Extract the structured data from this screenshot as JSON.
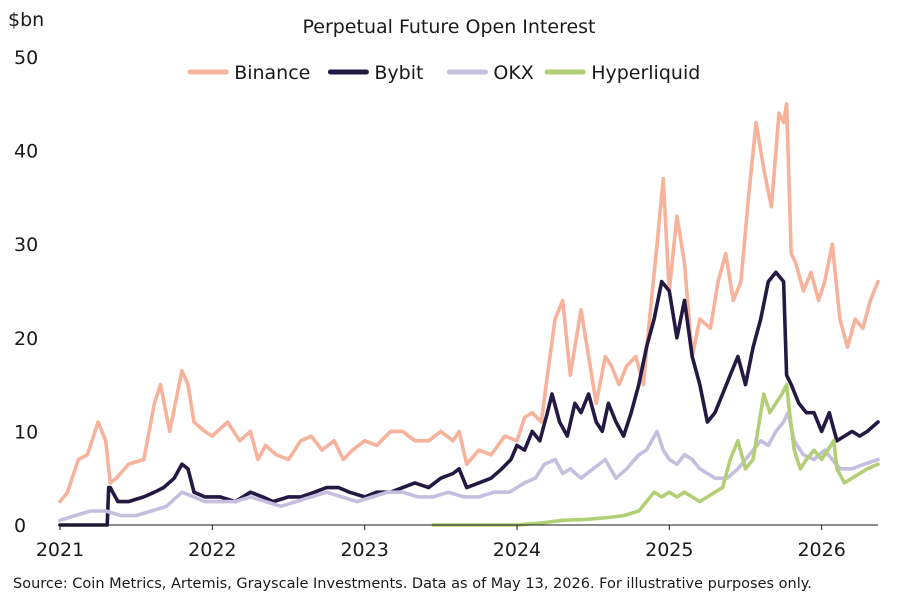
{
  "chart_data": {
    "type": "line",
    "title": "Perpetual Future Open Interest",
    "ylabel": "$bn",
    "ylim": [
      0,
      50
    ],
    "yticks": [
      "0",
      "10",
      "20",
      "30",
      "40",
      "50"
    ],
    "xlim": [
      2021.0,
      2026.37
    ],
    "xticks": [
      "2021",
      "2022",
      "2023",
      "2024",
      "2025",
      "2026"
    ],
    "grid": false,
    "legend_position": "top",
    "source": "Source: Coin Metrics,  Artemis, Grayscale Investments. Data as of May 13, 2026. For illustrative purposes only.",
    "series": [
      {
        "name": "Binance",
        "color": "#f7b29c",
        "x": [
          2021.0,
          2021.05,
          2021.12,
          2021.18,
          2021.25,
          2021.3,
          2021.33,
          2021.37,
          2021.45,
          2021.55,
          2021.62,
          2021.66,
          2021.72,
          2021.8,
          2021.84,
          2021.88,
          2021.95,
          2022.0,
          2022.1,
          2022.18,
          2022.25,
          2022.3,
          2022.35,
          2022.42,
          2022.5,
          2022.58,
          2022.65,
          2022.72,
          2022.8,
          2022.86,
          2022.92,
          2023.0,
          2023.08,
          2023.17,
          2023.25,
          2023.33,
          2023.42,
          2023.5,
          2023.58,
          2023.62,
          2023.67,
          2023.75,
          2023.83,
          2023.92,
          2024.0,
          2024.05,
          2024.1,
          2024.16,
          2024.2,
          2024.25,
          2024.3,
          2024.35,
          2024.42,
          2024.47,
          2024.52,
          2024.58,
          2024.62,
          2024.67,
          2024.72,
          2024.78,
          2024.83,
          2024.87,
          2024.92,
          2024.96,
          2025.0,
          2025.05,
          2025.1,
          2025.15,
          2025.2,
          2025.27,
          2025.32,
          2025.37,
          2025.42,
          2025.47,
          2025.52,
          2025.57,
          2025.62,
          2025.67,
          2025.72,
          2025.75,
          2025.77,
          2025.8,
          2025.83,
          2025.88,
          2025.93,
          2025.98,
          2026.02,
          2026.07,
          2026.12,
          2026.17,
          2026.22,
          2026.27,
          2026.32,
          2026.37
        ],
        "values": [
          2.5,
          3.5,
          7,
          7.5,
          11,
          9,
          4.5,
          5,
          6.5,
          7,
          13,
          15,
          10,
          16.5,
          15,
          11,
          10,
          9.5,
          11,
          9,
          10,
          7,
          8.5,
          7.5,
          7,
          9,
          9.5,
          8,
          9,
          7,
          8,
          9,
          8.5,
          10,
          10,
          9,
          9,
          10,
          9,
          10,
          6.5,
          8,
          7.5,
          9.5,
          9,
          11.5,
          12,
          11,
          16,
          22,
          24,
          16,
          23,
          18,
          13,
          18,
          17,
          15,
          17,
          18,
          15,
          22,
          30,
          37,
          25,
          33,
          28,
          18,
          22,
          21,
          26,
          29,
          24,
          26,
          35,
          43,
          38,
          34,
          44,
          43,
          45,
          29,
          28,
          25,
          27,
          24,
          26,
          30,
          22,
          19,
          22,
          21,
          24,
          26
        ]
      },
      {
        "name": "Bybit",
        "color": "#231942",
        "x": [
          2021.0,
          2021.1,
          2021.2,
          2021.31,
          2021.32,
          2021.33,
          2021.38,
          2021.45,
          2021.55,
          2021.62,
          2021.68,
          2021.75,
          2021.8,
          2021.84,
          2021.88,
          2021.95,
          2022.05,
          2022.15,
          2022.25,
          2022.33,
          2022.4,
          2022.5,
          2022.58,
          2022.67,
          2022.75,
          2022.83,
          2022.9,
          2023.0,
          2023.08,
          2023.17,
          2023.25,
          2023.33,
          2023.42,
          2023.5,
          2023.58,
          2023.62,
          2023.67,
          2023.75,
          2023.83,
          2023.9,
          2023.96,
          2024.0,
          2024.05,
          2024.1,
          2024.15,
          2024.2,
          2024.23,
          2024.28,
          2024.33,
          2024.38,
          2024.42,
          2024.47,
          2024.52,
          2024.56,
          2024.6,
          2024.65,
          2024.7,
          2024.75,
          2024.8,
          2024.85,
          2024.9,
          2024.95,
          2025.0,
          2025.05,
          2025.1,
          2025.15,
          2025.2,
          2025.25,
          2025.3,
          2025.35,
          2025.4,
          2025.45,
          2025.5,
          2025.55,
          2025.6,
          2025.65,
          2025.7,
          2025.75,
          2025.77,
          2025.8,
          2025.85,
          2025.9,
          2025.95,
          2026.0,
          2026.05,
          2026.1,
          2026.15,
          2026.2,
          2026.25,
          2026.3,
          2026.37
        ],
        "values": [
          0,
          0,
          0,
          0,
          4,
          4,
          2.5,
          2.5,
          3,
          3.5,
          4,
          5,
          6.5,
          6,
          3.5,
          3,
          3,
          2.5,
          3.5,
          3,
          2.5,
          3,
          3,
          3.5,
          4,
          4,
          3.5,
          3,
          3.5,
          3.5,
          4,
          4.5,
          4,
          5,
          5.5,
          6,
          4,
          4.5,
          5,
          6,
          7,
          8.5,
          8,
          10,
          9,
          12,
          14,
          11,
          9.5,
          13,
          12,
          14,
          11,
          10,
          13,
          11,
          9.5,
          12,
          15,
          19,
          22,
          26,
          25,
          20,
          24,
          18,
          15,
          11,
          12,
          14,
          16,
          18,
          15,
          19,
          22,
          26,
          27,
          26,
          16,
          15,
          13,
          12,
          12,
          10,
          12,
          9,
          9.5,
          10,
          9.5,
          10,
          11
        ]
      },
      {
        "name": "OKX",
        "color": "#c5bedf",
        "x": [
          2021.0,
          2021.1,
          2021.2,
          2021.3,
          2021.4,
          2021.5,
          2021.6,
          2021.7,
          2021.8,
          2021.88,
          2021.95,
          2022.05,
          2022.15,
          2022.25,
          2022.35,
          2022.45,
          2022.55,
          2022.65,
          2022.75,
          2022.85,
          2022.95,
          2023.05,
          2023.15,
          2023.25,
          2023.35,
          2023.45,
          2023.55,
          2023.65,
          2023.75,
          2023.85,
          2023.95,
          2024.05,
          2024.12,
          2024.18,
          2024.25,
          2024.3,
          2024.35,
          2024.42,
          2024.5,
          2024.58,
          2024.65,
          2024.72,
          2024.8,
          2024.85,
          2024.92,
          2024.96,
          2025.0,
          2025.05,
          2025.1,
          2025.15,
          2025.2,
          2025.25,
          2025.3,
          2025.38,
          2025.45,
          2025.5,
          2025.55,
          2025.6,
          2025.65,
          2025.7,
          2025.75,
          2025.78,
          2025.82,
          2025.88,
          2025.95,
          2026.02,
          2026.07,
          2026.12,
          2026.2,
          2026.28,
          2026.37
        ],
        "values": [
          0.5,
          1,
          1.5,
          1.5,
          1,
          1,
          1.5,
          2,
          3.5,
          3,
          2.5,
          2.5,
          2.5,
          3,
          2.5,
          2,
          2.5,
          3,
          3.5,
          3,
          2.5,
          3,
          3.5,
          3.5,
          3,
          3,
          3.5,
          3,
          3,
          3.5,
          3.5,
          4.5,
          5,
          6.5,
          7,
          5.5,
          6,
          5,
          6,
          7,
          5,
          6,
          7.5,
          8,
          10,
          8,
          7,
          6.5,
          7.5,
          7,
          6,
          5.5,
          5,
          5,
          6,
          7,
          8,
          9,
          8.5,
          10,
          11,
          12,
          9,
          7.5,
          7,
          8,
          7,
          6,
          6,
          6.5,
          7
        ]
      },
      {
        "name": "Hyperliquid",
        "color": "#b3cf76",
        "x": [
          2023.45,
          2023.6,
          2023.8,
          2024.0,
          2024.15,
          2024.3,
          2024.45,
          2024.6,
          2024.7,
          2024.8,
          2024.85,
          2024.9,
          2024.95,
          2025.0,
          2025.05,
          2025.1,
          2025.15,
          2025.2,
          2025.25,
          2025.3,
          2025.35,
          2025.4,
          2025.45,
          2025.5,
          2025.55,
          2025.58,
          2025.62,
          2025.66,
          2025.7,
          2025.74,
          2025.77,
          2025.79,
          2025.82,
          2025.86,
          2025.9,
          2025.95,
          2026.0,
          2026.04,
          2026.08,
          2026.1,
          2026.15,
          2026.2,
          2026.25,
          2026.3,
          2026.37
        ],
        "values": [
          0,
          0,
          0,
          0,
          0.2,
          0.5,
          0.6,
          0.8,
          1,
          1.5,
          2.5,
          3.5,
          3,
          3.5,
          3,
          3.5,
          3,
          2.5,
          3,
          3.5,
          4,
          7,
          9,
          6,
          7,
          10,
          14,
          12,
          13,
          14,
          15,
          12,
          8,
          6,
          7,
          8,
          7,
          8,
          9,
          6,
          4.5,
          5,
          5.5,
          6,
          6.5
        ]
      }
    ]
  }
}
